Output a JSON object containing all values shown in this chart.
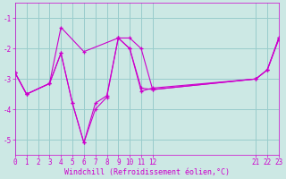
{
  "background_color": "#cce8e4",
  "grid_color": "#99cccc",
  "line_color": "#cc00cc",
  "xlabel": "Windchill (Refroidissement éolien,°C)",
  "xlabel_color": "#cc00cc",
  "tick_color": "#cc00cc",
  "xlim": [
    0,
    23
  ],
  "ylim": [
    -5.5,
    -0.5
  ],
  "yticks": [
    -5,
    -4,
    -3,
    -2,
    -1
  ],
  "xtick_positions": [
    0,
    1,
    2,
    3,
    4,
    5,
    6,
    7,
    8,
    9,
    10,
    11,
    12,
    21,
    22,
    23
  ],
  "xtick_labels": [
    "0",
    "1",
    "2",
    "3",
    "4",
    "5",
    "6",
    "7",
    "8",
    "9",
    "10",
    "11",
    "12",
    "21",
    "22",
    "23"
  ],
  "series": [
    {
      "x": [
        0,
        1,
        3,
        4,
        6,
        9,
        10,
        11,
        12,
        21,
        22,
        23
      ],
      "y": [
        -2.8,
        -3.5,
        -3.15,
        -1.3,
        -2.1,
        -1.65,
        -2.0,
        -3.4,
        -3.3,
        -3.0,
        -2.7,
        -1.7
      ]
    },
    {
      "x": [
        0,
        1,
        3,
        4,
        5,
        6,
        7,
        8,
        9,
        10,
        11,
        12,
        21,
        22,
        23
      ],
      "y": [
        -2.8,
        -3.5,
        -3.15,
        -2.15,
        -3.8,
        -5.1,
        -4.0,
        -3.6,
        -1.65,
        -2.0,
        -3.3,
        -3.35,
        -3.0,
        -2.7,
        -1.65
      ]
    },
    {
      "x": [
        0,
        1,
        3,
        4,
        5,
        6,
        7,
        8,
        9,
        10,
        11,
        12,
        21,
        22,
        23
      ],
      "y": [
        -2.8,
        -3.5,
        -3.15,
        -2.15,
        -3.8,
        -5.1,
        -3.8,
        -3.55,
        -1.65,
        -1.65,
        -2.0,
        -3.35,
        -3.0,
        -2.7,
        -1.65
      ]
    }
  ]
}
